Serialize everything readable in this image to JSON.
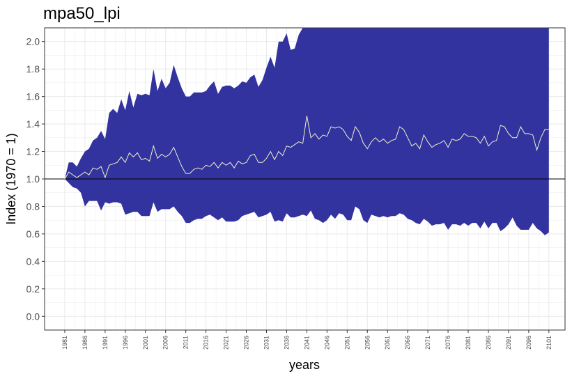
{
  "chart_data": {
    "type": "area",
    "title": "mpa50_lpi",
    "xlabel": "years",
    "ylabel": "Index (1970 = 1)",
    "xlim": [
      1976,
      2105
    ],
    "ylim": [
      -0.1,
      2.1
    ],
    "x_ticks": [
      1981,
      1986,
      1991,
      1996,
      2001,
      2006,
      2011,
      2016,
      2021,
      2026,
      2031,
      2036,
      2041,
      2046,
      2051,
      2056,
      2061,
      2066,
      2071,
      2076,
      2081,
      2086,
      2091,
      2096,
      2101
    ],
    "y_ticks": [
      0.0,
      0.2,
      0.4,
      0.6,
      0.8,
      1.0,
      1.2,
      1.4,
      1.6,
      1.8,
      2.0
    ],
    "y_tick_labels": [
      "0.0",
      "0.2",
      "0.4",
      "0.6",
      "0.8",
      "1.0",
      "1.2",
      "1.4",
      "1.6",
      "1.8",
      "2.0"
    ],
    "grid": true,
    "reference_line": 1.0,
    "colors": {
      "band": "#3333a0",
      "line": "#f0f0c8",
      "reference": "#000000",
      "grid": "#ebebeb"
    },
    "series": [
      {
        "x": [
          1981,
          1982,
          1983,
          1984,
          1985,
          1986,
          1987,
          1988,
          1989,
          1990,
          1991,
          1992,
          1993,
          1994,
          1995,
          1996,
          1997,
          1998,
          1999,
          2000,
          2001,
          2002,
          2003,
          2004,
          2005,
          2006,
          2007,
          2008,
          2009,
          2010,
          2011,
          2012,
          2013,
          2014,
          2015,
          2016,
          2017,
          2018,
          2019,
          2020,
          2021,
          2022,
          2023,
          2024,
          2025,
          2026,
          2027,
          2028,
          2029,
          2030,
          2031,
          2032,
          2033,
          2034,
          2035,
          2036,
          2037,
          2038,
          2039,
          2040,
          2041,
          2042,
          2043,
          2044,
          2045,
          2046,
          2047,
          2048,
          2049,
          2050,
          2051,
          2052,
          2053,
          2054,
          2055,
          2056,
          2057,
          2058,
          2059,
          2060,
          2061,
          2062,
          2063,
          2064,
          2065,
          2066,
          2067,
          2068,
          2069,
          2070,
          2071,
          2072,
          2073,
          2074,
          2075,
          2076,
          2077,
          2078,
          2079,
          2080,
          2081,
          2082,
          2083,
          2084,
          2085,
          2086,
          2087,
          2088,
          2089,
          2090,
          2091,
          2092,
          2093,
          2094,
          2095,
          2096,
          2097,
          2098,
          2099,
          2100,
          2101
        ],
        "mean": [
          1.0,
          1.05,
          1.03,
          1.01,
          1.03,
          1.05,
          1.03,
          1.08,
          1.07,
          1.09,
          1.01,
          1.1,
          1.11,
          1.12,
          1.16,
          1.12,
          1.19,
          1.16,
          1.19,
          1.14,
          1.15,
          1.13,
          1.24,
          1.15,
          1.18,
          1.16,
          1.18,
          1.23,
          1.16,
          1.09,
          1.04,
          1.04,
          1.07,
          1.08,
          1.07,
          1.1,
          1.09,
          1.12,
          1.08,
          1.12,
          1.1,
          1.12,
          1.08,
          1.13,
          1.11,
          1.12,
          1.17,
          1.18,
          1.12,
          1.12,
          1.15,
          1.2,
          1.14,
          1.2,
          1.17,
          1.24,
          1.23,
          1.25,
          1.27,
          1.26,
          1.46,
          1.3,
          1.33,
          1.29,
          1.32,
          1.31,
          1.38,
          1.37,
          1.38,
          1.36,
          1.31,
          1.28,
          1.38,
          1.34,
          1.26,
          1.22,
          1.27,
          1.3,
          1.27,
          1.29,
          1.26,
          1.28,
          1.29,
          1.38,
          1.36,
          1.3,
          1.24,
          1.26,
          1.22,
          1.32,
          1.27,
          1.23,
          1.25,
          1.26,
          1.28,
          1.23,
          1.29,
          1.28,
          1.29,
          1.33,
          1.31,
          1.31,
          1.3,
          1.26,
          1.31,
          1.24,
          1.27,
          1.28,
          1.39,
          1.38,
          1.33,
          1.3,
          1.3,
          1.38,
          1.33,
          1.33,
          1.32,
          1.21,
          1.3,
          1.36,
          1.36
        ],
        "upper": [
          1.0,
          1.12,
          1.12,
          1.09,
          1.15,
          1.2,
          1.22,
          1.28,
          1.3,
          1.35,
          1.29,
          1.48,
          1.51,
          1.48,
          1.58,
          1.5,
          1.64,
          1.52,
          1.62,
          1.61,
          1.62,
          1.61,
          1.8,
          1.64,
          1.73,
          1.66,
          1.7,
          1.83,
          1.74,
          1.66,
          1.6,
          1.6,
          1.63,
          1.63,
          1.63,
          1.64,
          1.68,
          1.71,
          1.62,
          1.67,
          1.68,
          1.68,
          1.66,
          1.68,
          1.71,
          1.7,
          1.74,
          1.76,
          1.67,
          1.72,
          1.81,
          1.89,
          1.81,
          2.0,
          2.0,
          2.06,
          1.94,
          1.95,
          2.05,
          2.1,
          2.1,
          2.1,
          2.1,
          2.1,
          2.1,
          2.1,
          2.1,
          2.1,
          2.1,
          2.1,
          2.1,
          2.1,
          2.1,
          2.1,
          2.1,
          2.1,
          2.1,
          2.1,
          2.1,
          2.1,
          2.1,
          2.1,
          2.1,
          2.1,
          2.1,
          2.1,
          2.1,
          2.1,
          2.1,
          2.1,
          2.1,
          2.1,
          2.1,
          2.1,
          2.1,
          2.1,
          2.1,
          2.1,
          2.1,
          2.1,
          2.1,
          2.1,
          2.1,
          2.1,
          2.1,
          2.1,
          2.1,
          2.1,
          2.1,
          2.1,
          2.1,
          2.1,
          2.1,
          2.1,
          2.1,
          2.1,
          2.1,
          2.1,
          2.1,
          2.1,
          2.1
        ],
        "lower": [
          1.0,
          0.97,
          0.94,
          0.93,
          0.9,
          0.8,
          0.84,
          0.84,
          0.84,
          0.77,
          0.83,
          0.82,
          0.83,
          0.83,
          0.82,
          0.74,
          0.75,
          0.76,
          0.76,
          0.73,
          0.73,
          0.73,
          0.83,
          0.76,
          0.78,
          0.78,
          0.78,
          0.8,
          0.76,
          0.73,
          0.68,
          0.68,
          0.7,
          0.71,
          0.71,
          0.73,
          0.74,
          0.72,
          0.7,
          0.72,
          0.69,
          0.69,
          0.69,
          0.7,
          0.73,
          0.74,
          0.75,
          0.76,
          0.72,
          0.73,
          0.74,
          0.76,
          0.69,
          0.7,
          0.69,
          0.75,
          0.72,
          0.72,
          0.73,
          0.74,
          0.73,
          0.77,
          0.71,
          0.7,
          0.68,
          0.7,
          0.74,
          0.71,
          0.75,
          0.74,
          0.7,
          0.7,
          0.8,
          0.78,
          0.7,
          0.68,
          0.74,
          0.73,
          0.72,
          0.73,
          0.72,
          0.73,
          0.73,
          0.75,
          0.74,
          0.71,
          0.7,
          0.68,
          0.67,
          0.71,
          0.69,
          0.66,
          0.67,
          0.67,
          0.68,
          0.63,
          0.67,
          0.67,
          0.66,
          0.68,
          0.66,
          0.68,
          0.68,
          0.64,
          0.69,
          0.64,
          0.68,
          0.68,
          0.62,
          0.64,
          0.67,
          0.72,
          0.66,
          0.63,
          0.63,
          0.63,
          0.68,
          0.64,
          0.62,
          0.59,
          0.61
        ]
      }
    ]
  }
}
